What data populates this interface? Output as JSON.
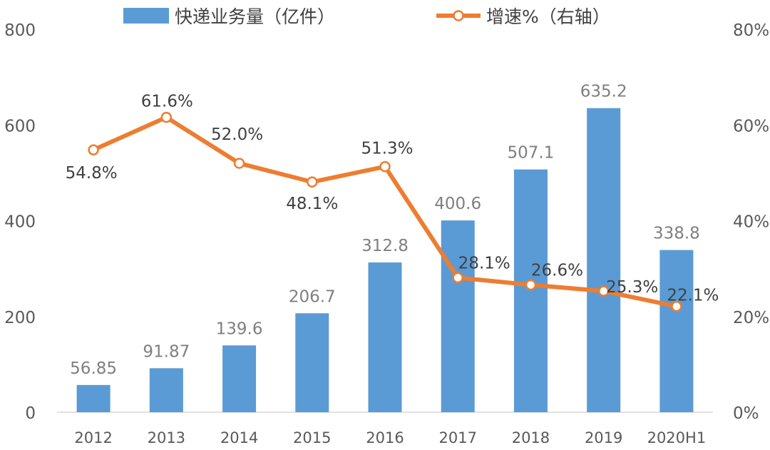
{
  "chart_data": {
    "type": "bar+line",
    "categories": [
      "2012",
      "2013",
      "2014",
      "2015",
      "2016",
      "2017",
      "2018",
      "2019",
      "2020H1"
    ],
    "series": [
      {
        "name": "快递业务量（亿件）",
        "type": "bar",
        "axis": "left",
        "values": [
          56.85,
          91.87,
          139.6,
          206.7,
          312.8,
          400.6,
          507.1,
          635.2,
          338.8
        ],
        "labels": [
          "56.85",
          "91.87",
          "139.6",
          "206.7",
          "312.8",
          "400.6",
          "507.1",
          "635.2",
          "338.8"
        ],
        "color": "#5B9BD5"
      },
      {
        "name": "增速%（右轴）",
        "type": "line",
        "axis": "right",
        "values": [
          54.8,
          61.6,
          52.0,
          48.1,
          51.3,
          28.1,
          26.6,
          25.3,
          22.1
        ],
        "labels": [
          "54.8%",
          "61.6%",
          "52.0%",
          "48.1%",
          "51.3%",
          "28.1%",
          "26.6%",
          "25.3%",
          "22.1%"
        ],
        "color": "#ED7D31"
      }
    ],
    "left_axis": {
      "ticks": [
        "0",
        "200",
        "400",
        "600",
        "800"
      ],
      "ylim": [
        0,
        800
      ]
    },
    "right_axis": {
      "ticks": [
        "0%",
        "20%",
        "40%",
        "60%",
        "80%"
      ],
      "ylim": [
        0,
        80
      ]
    },
    "grid": false,
    "legend_position": "top"
  }
}
